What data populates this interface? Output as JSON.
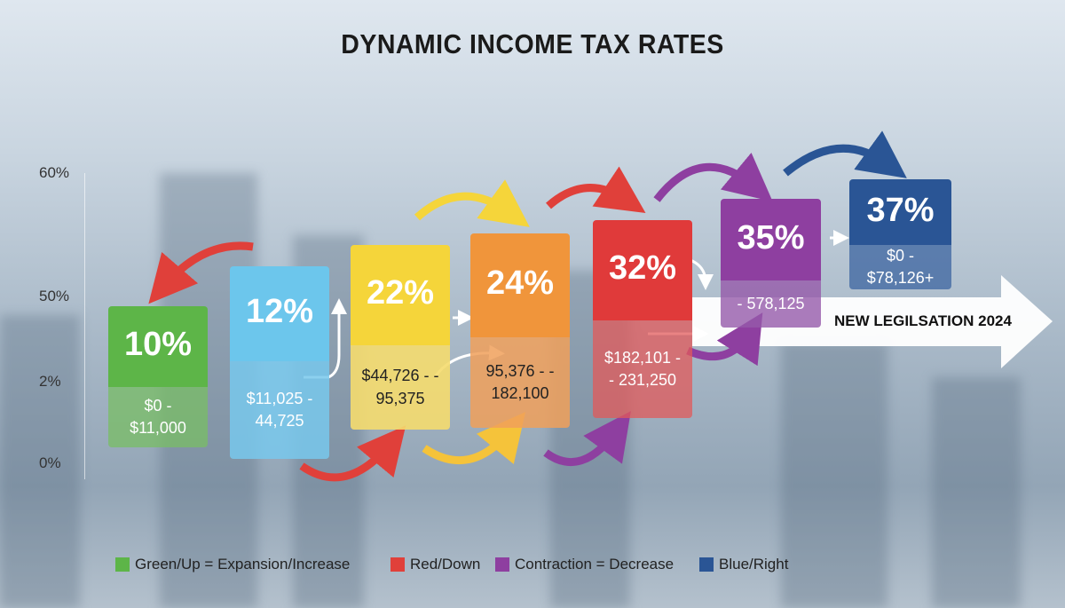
{
  "title": "DYNAMIC INCOME TAX RATES",
  "axis_labels": [
    "60%",
    "50%",
    "2%",
    "0%"
  ],
  "brackets": [
    {
      "rate": "10%",
      "range": "$0 - $11,000"
    },
    {
      "rate": "12%",
      "range": "$11,025 - 44,725"
    },
    {
      "rate": "22%",
      "range": "$44,726 - - 95,375"
    },
    {
      "rate": "24%",
      "range": "95,376 - - 182,100"
    },
    {
      "rate": "32%",
      "range": "$182,101 - - 231,250"
    },
    {
      "rate": "35%",
      "range": "- 578,125"
    },
    {
      "rate": "37%",
      "range": "$0 - $78,126+"
    }
  ],
  "banner": "NEW LEGILSATION 2024",
  "legend": [
    "Green/Up = Expansion/Increase",
    "Red/Down",
    "Contraction = Decrease",
    "Blue/Right"
  ]
}
